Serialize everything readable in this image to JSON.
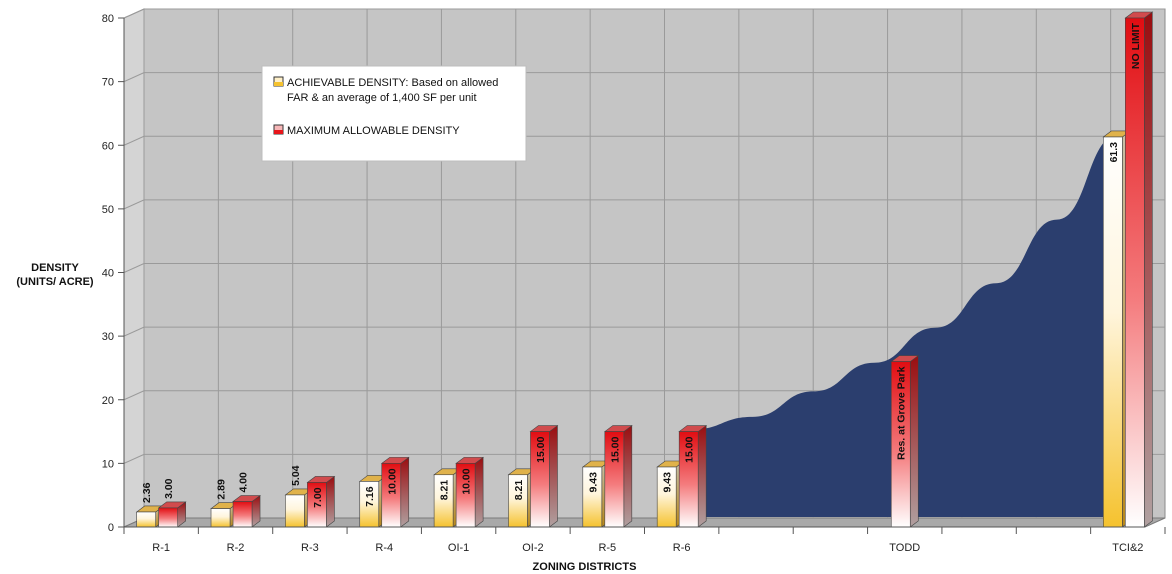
{
  "chart_data": {
    "type": "bar",
    "categories": [
      "R-1",
      "R-2",
      "R-3",
      "R-4",
      "OI-1",
      "OI-2",
      "R-5",
      "R-6",
      "",
      "",
      "TODD",
      "",
      "",
      "TCI&2"
    ],
    "series": [
      {
        "name": "ACHIEVABLE DENSITY: Based on allowed FAR & an average of 1,400 SF per unit",
        "values": [
          2.36,
          2.89,
          5.04,
          7.16,
          8.21,
          8.21,
          9.43,
          9.43,
          null,
          null,
          null,
          null,
          null,
          61.3
        ],
        "labels": [
          "2.36",
          "2.89",
          "5.04",
          "7.16",
          "8.21",
          "8.21",
          "9.43",
          "9.43",
          "",
          "",
          "",
          "",
          "",
          "61.3"
        ],
        "color": "#f5c22e"
      },
      {
        "name": "MAXIMUM ALLOWABLE DENSITY",
        "values": [
          3.0,
          4.0,
          7.0,
          10.0,
          10.0,
          15.0,
          15.0,
          15.0,
          null,
          null,
          26.0,
          null,
          null,
          80.0
        ],
        "labels": [
          "3.00",
          "4.00",
          "7.00",
          "10.00",
          "10.00",
          "15.00",
          "15.00",
          "15.00",
          "",
          "",
          "Res. at Grove Park",
          "",
          "",
          "NO LIMIT"
        ],
        "color": "#e8161b"
      }
    ],
    "area": {
      "x_from": "R-6",
      "x_to": "TCI&2",
      "values": [
        15,
        17,
        21,
        25.5,
        31,
        38,
        48,
        61.3
      ],
      "color": "#2b3e6e"
    },
    "ylim": [
      0,
      80
    ],
    "yticks": [
      "0",
      "10",
      "20",
      "30",
      "40",
      "50",
      "60",
      "70",
      "80"
    ],
    "ylabel_lines": [
      "DENSITY",
      "(UNITS/ ACRE)"
    ],
    "xlabel": "ZONING DISTRICTS",
    "grid": true,
    "legend": {
      "position": "top-left",
      "entries": [
        [
          "ACHIEVABLE DENSITY: Based on allowed",
          "FAR & an average of 1,400 SF per unit"
        ],
        [
          "MAXIMUM ALLOWABLE DENSITY"
        ]
      ]
    }
  }
}
